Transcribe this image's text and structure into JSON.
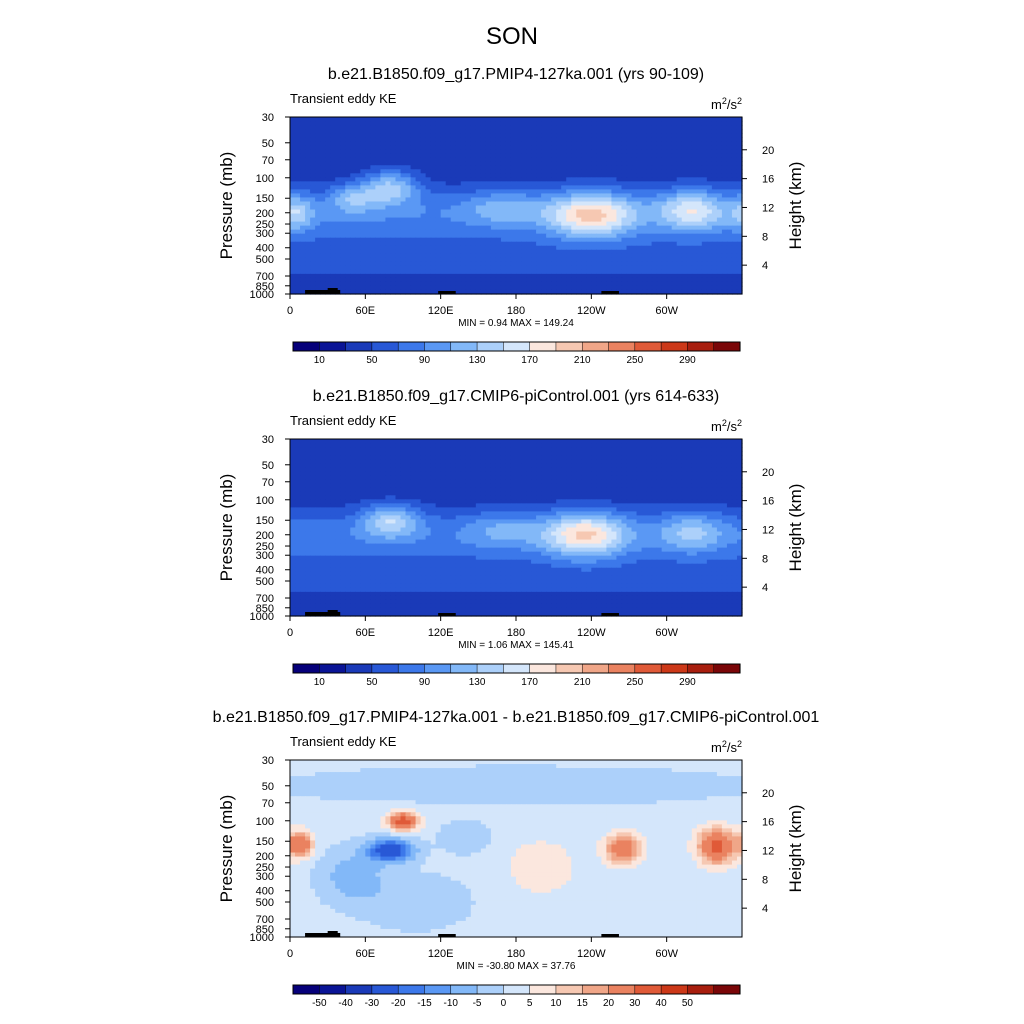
{
  "figure": {
    "title": "SON"
  },
  "colors": {
    "abs_palette": [
      "#06007a",
      "#0a1496",
      "#1a3ab8",
      "#2858d6",
      "#3c78ea",
      "#5a98f4",
      "#82b8f8",
      "#acd0fa",
      "#d4e6fb",
      "#fbe7de",
      "#f6c8b2",
      "#f0a688",
      "#ea8260",
      "#e05a38",
      "#cc3818",
      "#a81e0e",
      "#7a0608"
    ],
    "diff_palette": [
      "#06007a",
      "#0a1496",
      "#1a3ab8",
      "#2858d6",
      "#3c78ea",
      "#5a98f4",
      "#82b8f8",
      "#acd0fa",
      "#d4e6fb",
      "#fbe7de",
      "#f6c8b2",
      "#f0a688",
      "#ea8260",
      "#e05a38",
      "#cc3818",
      "#a81e0e",
      "#7a0608"
    ],
    "terrain": "#000000"
  },
  "chart_data": [
    {
      "type": "heatmap",
      "title": "b.e21.B1850.f09_g17.PMIP4-127ka.001 (yrs 90-109)",
      "left_label": "Transient eddy KE",
      "units_base": "m",
      "units_sup1": "2",
      "units_mid": "/s",
      "units_sup2": "2",
      "ylabel": "Pressure (mb)",
      "ylabel_right": "Height (km)",
      "xticks": [
        "0",
        "60E",
        "120E",
        "180",
        "120W",
        "60W"
      ],
      "xtick_lons": [
        0,
        60,
        120,
        180,
        240,
        300
      ],
      "xlim": [
        0,
        360
      ],
      "yticks": [
        "30",
        "50",
        "70",
        "100",
        "150",
        "200",
        "250",
        "300",
        "400",
        "500",
        "700",
        "850",
        "1000"
      ],
      "ytick_p": [
        30,
        50,
        70,
        100,
        150,
        200,
        250,
        300,
        400,
        500,
        700,
        850,
        1000
      ],
      "ylim": [
        30,
        1000
      ],
      "height_ticks": [
        "4",
        "8",
        "12",
        "16",
        "20"
      ],
      "height_km": [
        4,
        8,
        12,
        16,
        20
      ],
      "minmax_label": "MIN =   0.94  MAX = 149.24",
      "min": 0.94,
      "max": 149.24,
      "cbar_labels": [
        "10",
        "50",
        "90",
        "130",
        "170",
        "210",
        "250",
        "290"
      ],
      "cbar_levels": [
        10,
        30,
        50,
        70,
        90,
        110,
        130,
        150,
        170,
        190,
        210,
        230,
        250,
        270,
        290,
        310
      ],
      "field": {
        "base": 30,
        "bands": [
          {
            "p_center": 200,
            "p_width": 0.55,
            "amp": 55
          },
          {
            "p_center": 500,
            "p_width": 0.6,
            "amp": 25
          }
        ],
        "blobs": [
          {
            "lon": 80,
            "p": 120,
            "amp": 85,
            "lon_w": 22,
            "p_w": 0.35
          },
          {
            "lon": 50,
            "p": 150,
            "amp": 55,
            "lon_w": 18,
            "p_w": 0.3
          },
          {
            "lon": 240,
            "p": 210,
            "amp": 115,
            "lon_w": 34,
            "p_w": 0.45
          },
          {
            "lon": 170,
            "p": 180,
            "amp": 40,
            "lon_w": 30,
            "p_w": 0.35
          },
          {
            "lon": 320,
            "p": 190,
            "amp": 85,
            "lon_w": 26,
            "p_w": 0.4
          },
          {
            "lon": 5,
            "p": 200,
            "amp": 60,
            "lon_w": 14,
            "p_w": 0.35
          }
        ]
      }
    },
    {
      "type": "heatmap",
      "title": "b.e21.B1850.f09_g17.CMIP6-piControl.001 (yrs 614-633)",
      "left_label": "Transient eddy KE",
      "units_base": "m",
      "units_sup1": "2",
      "units_mid": "/s",
      "units_sup2": "2",
      "ylabel": "Pressure (mb)",
      "ylabel_right": "Height (km)",
      "xticks": [
        "0",
        "60E",
        "120E",
        "180",
        "120W",
        "60W"
      ],
      "xtick_lons": [
        0,
        60,
        120,
        180,
        240,
        300
      ],
      "xlim": [
        0,
        360
      ],
      "yticks": [
        "30",
        "50",
        "70",
        "100",
        "150",
        "200",
        "250",
        "300",
        "400",
        "500",
        "700",
        "850",
        "1000"
      ],
      "ytick_p": [
        30,
        50,
        70,
        100,
        150,
        200,
        250,
        300,
        400,
        500,
        700,
        850,
        1000
      ],
      "ylim": [
        30,
        1000
      ],
      "height_ticks": [
        "4",
        "8",
        "12",
        "16",
        "20"
      ],
      "height_km": [
        4,
        8,
        12,
        16,
        20
      ],
      "minmax_label": "MIN =   1.06  MAX = 145.41",
      "min": 1.06,
      "max": 145.41,
      "cbar_labels": [
        "10",
        "50",
        "90",
        "130",
        "170",
        "210",
        "250",
        "290"
      ],
      "cbar_levels": [
        10,
        30,
        50,
        70,
        90,
        110,
        130,
        150,
        170,
        190,
        210,
        230,
        250,
        270,
        290,
        310
      ],
      "field": {
        "base": 30,
        "bands": [
          {
            "p_center": 200,
            "p_width": 0.55,
            "amp": 52
          },
          {
            "p_center": 500,
            "p_width": 0.6,
            "amp": 22
          }
        ],
        "blobs": [
          {
            "lon": 80,
            "p": 150,
            "amp": 80,
            "lon_w": 22,
            "p_w": 0.33
          },
          {
            "lon": 235,
            "p": 200,
            "amp": 112,
            "lon_w": 32,
            "p_w": 0.45
          },
          {
            "lon": 170,
            "p": 180,
            "amp": 35,
            "lon_w": 30,
            "p_w": 0.35
          },
          {
            "lon": 320,
            "p": 190,
            "amp": 55,
            "lon_w": 26,
            "p_w": 0.4
          }
        ]
      }
    },
    {
      "type": "heatmap",
      "title": "b.e21.B1850.f09_g17.PMIP4-127ka.001 - b.e21.B1850.f09_g17.CMIP6-piControl.001",
      "left_label": "Transient eddy KE",
      "units_base": "m",
      "units_sup1": "2",
      "units_mid": "/s",
      "units_sup2": "2",
      "ylabel": "Pressure (mb)",
      "ylabel_right": "Height (km)",
      "xticks": [
        "0",
        "60E",
        "120E",
        "180",
        "120W",
        "60W"
      ],
      "xtick_lons": [
        0,
        60,
        120,
        180,
        240,
        300
      ],
      "xlim": [
        0,
        360
      ],
      "yticks": [
        "30",
        "50",
        "70",
        "100",
        "150",
        "200",
        "250",
        "300",
        "400",
        "500",
        "700",
        "850",
        "1000"
      ],
      "ytick_p": [
        30,
        50,
        70,
        100,
        150,
        200,
        250,
        300,
        400,
        500,
        700,
        850,
        1000
      ],
      "ylim": [
        30,
        1000
      ],
      "height_ticks": [
        "4",
        "8",
        "12",
        "16",
        "20"
      ],
      "height_km": [
        4,
        8,
        12,
        16,
        20
      ],
      "minmax_label": "MIN = -30.80  MAX =  37.76",
      "min": -30.8,
      "max": 37.76,
      "cbar_labels": [
        "-50",
        "-40",
        "-30",
        "-20",
        "-15",
        "-10",
        "-5",
        "0",
        "5",
        "10",
        "15",
        "20",
        "30",
        "40",
        "50"
      ],
      "cbar_levels": [
        -60,
        -50,
        -40,
        -30,
        -20,
        -15,
        -10,
        -5,
        0,
        5,
        10,
        15,
        20,
        30,
        40,
        50,
        60
      ],
      "field": {
        "base": 1.5,
        "bands": [],
        "blobs": [
          {
            "lon": 90,
            "p": 100,
            "amp": 34,
            "lon_w": 12,
            "p_w": 0.18
          },
          {
            "lon": 80,
            "p": 180,
            "amp": -28,
            "lon_w": 18,
            "p_w": 0.22
          },
          {
            "lon": 50,
            "p": 300,
            "amp": -10,
            "lon_w": 25,
            "p_w": 0.5
          },
          {
            "lon": 140,
            "p": 140,
            "amp": -6,
            "lon_w": 20,
            "p_w": 0.3
          },
          {
            "lon": 8,
            "p": 160,
            "amp": 28,
            "lon_w": 10,
            "p_w": 0.25
          },
          {
            "lon": 265,
            "p": 175,
            "amp": 26,
            "lon_w": 14,
            "p_w": 0.3
          },
          {
            "lon": 340,
            "p": 165,
            "amp": 33,
            "lon_w": 15,
            "p_w": 0.35
          },
          {
            "lon": 200,
            "p": 250,
            "amp": 7,
            "lon_w": 30,
            "p_w": 0.6
          },
          {
            "lon": 100,
            "p": 500,
            "amp": -6,
            "lon_w": 40,
            "p_w": 0.5
          },
          {
            "lon": 180,
            "p": 50,
            "amp": -4,
            "lon_w": 200,
            "p_w": 0.4
          }
        ]
      }
    }
  ]
}
